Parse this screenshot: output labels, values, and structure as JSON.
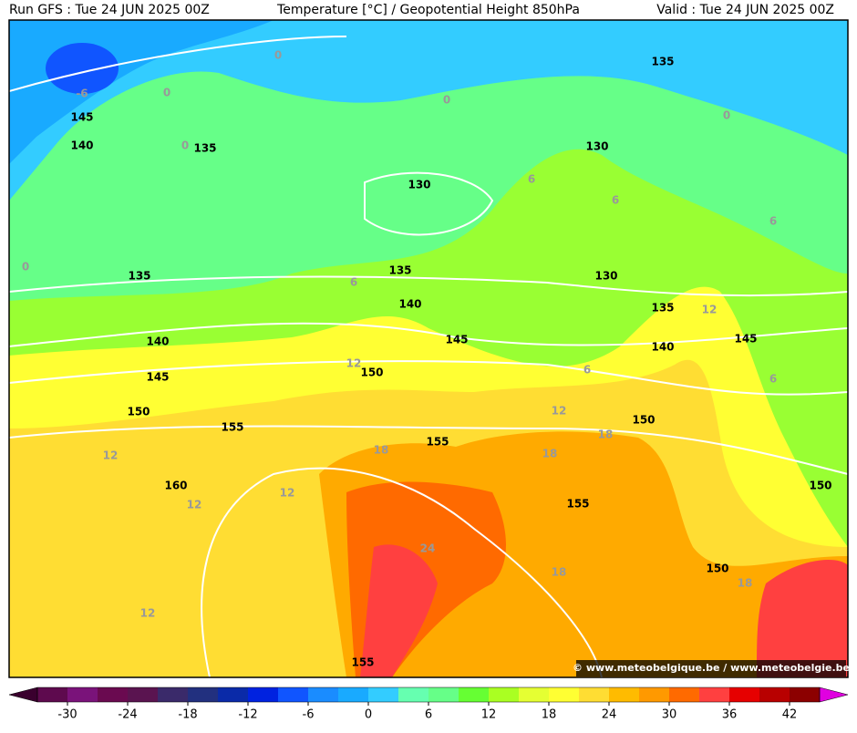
{
  "header": {
    "left": "Run GFS : Tue 24 JUN 2025 00Z",
    "center": "Temperature [°C] / Geopotential Height 850hPa",
    "right": "Valid : Tue 24 JUN 2025 00Z"
  },
  "credit": "© www.meteobelgique.be / www.meteobelgie.be",
  "colorbar": {
    "ticks": [
      -30,
      -24,
      -18,
      -12,
      -6,
      0,
      6,
      12,
      18,
      24,
      30,
      36,
      42
    ],
    "colors": [
      "#5e0a4e",
      "#7a137a",
      "#6a0a50",
      "#5a1450",
      "#3a2a6a",
      "#22307f",
      "#0a2aa8",
      "#0022e0",
      "#1055ff",
      "#1a8cff",
      "#19aaff",
      "#33ccff",
      "#66ffb0",
      "#66ff88",
      "#66ff33",
      "#aaff22",
      "#e5ff33",
      "#ffff33",
      "#ffdd33",
      "#ffbb00",
      "#ff9900",
      "#ff6a00",
      "#ff4040",
      "#e60000",
      "#b80000",
      "#8c0000"
    ],
    "end_colors": [
      "#3a002e",
      "#e000e0"
    ]
  },
  "height_labels": [
    "135",
    "145",
    "140",
    "135",
    "130",
    "130",
    "135",
    "135",
    "130",
    "140",
    "135",
    "140",
    "145",
    "140",
    "145",
    "150",
    "145",
    "150",
    "155",
    "150",
    "155",
    "160",
    "155",
    "150",
    "150",
    "155"
  ],
  "temperature_labels": [
    "0",
    "-6",
    "0",
    "0",
    "0",
    "0",
    "0",
    "6",
    "6",
    "6",
    "6",
    "12",
    "12",
    "6",
    "6",
    "12",
    "18",
    "18",
    "18",
    "12",
    "12",
    "12",
    "24",
    "18",
    "18",
    "12"
  ]
}
